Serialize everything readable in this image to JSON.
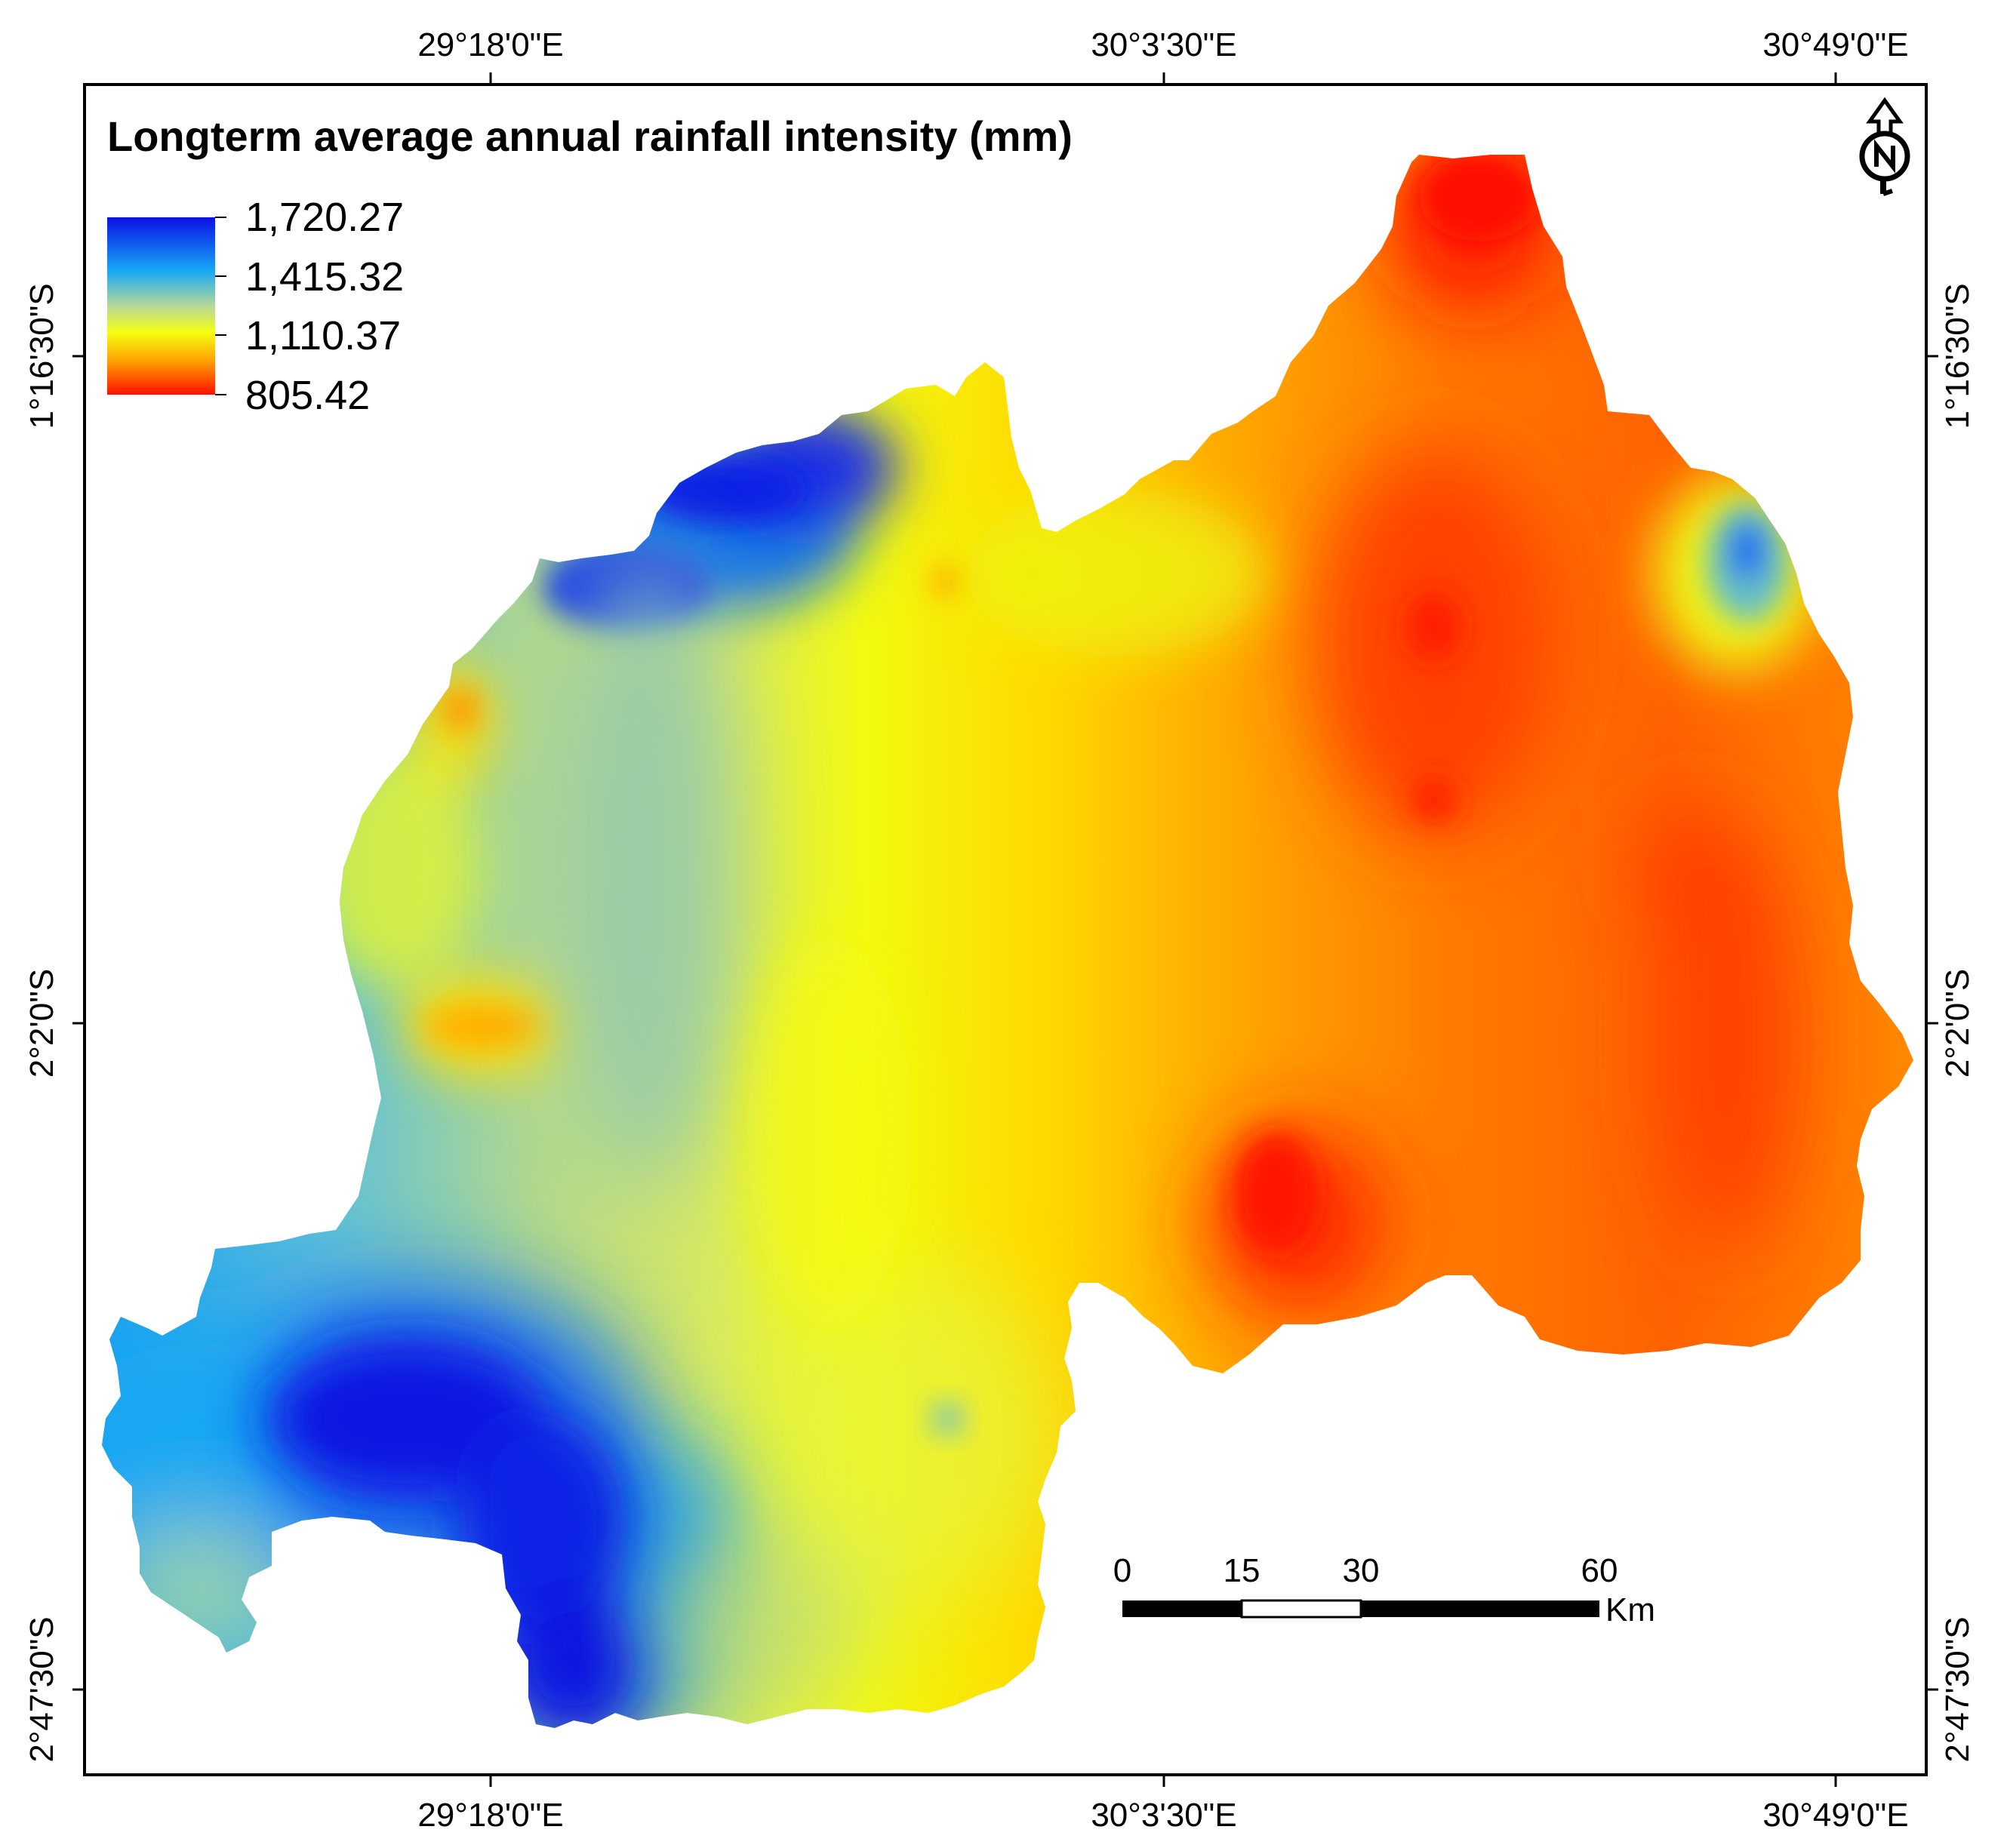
{
  "map": {
    "title": "Longterm average annual rainfall intensity (mm)",
    "legend": {
      "values": [
        "1,720.27",
        "1,415.32",
        "1,110.37",
        "805.42"
      ],
      "colors": [
        "#0a1fe0",
        "#1fa8f0",
        "#e8ff10",
        "#ff1400"
      ]
    },
    "top_axis": [
      "29°18'0\"E",
      "30°3'30\"E",
      "30°49'0\"E"
    ],
    "bottom_axis": [
      "29°18'0\"E",
      "30°3'30\"E",
      "30°49'0\"E"
    ],
    "left_axis": [
      "1°16'30\"S",
      "2°2'0\"S",
      "2°47'30\"S"
    ],
    "right_axis": [
      "1°16'30\"S",
      "2°2'0\"S",
      "2°47'30\"S"
    ],
    "scale_bar": {
      "ticks": [
        "0",
        "15",
        "30",
        "60"
      ],
      "unit": "Km"
    },
    "north_arrow_icon": "north-arrow-icon"
  }
}
